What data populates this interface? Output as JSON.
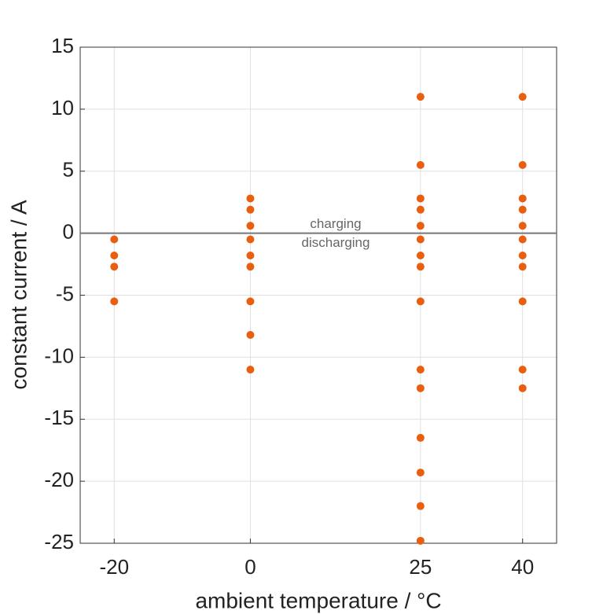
{
  "chart_data": {
    "type": "scatter",
    "x_label": "ambient temperature / °C",
    "y_label": "constant current / A",
    "x": [
      -20,
      -20,
      -20,
      -20,
      0,
      0,
      0,
      0,
      0,
      0,
      0,
      0,
      0,
      25,
      25,
      25,
      25,
      25,
      25,
      25,
      25,
      25,
      25,
      25,
      25,
      25,
      25,
      25,
      40,
      40,
      40,
      40,
      40,
      40,
      40,
      40,
      40,
      40,
      40
    ],
    "y": [
      -0.5,
      -1.8,
      -2.7,
      -5.5,
      2.8,
      1.9,
      0.6,
      -0.5,
      -1.8,
      -2.7,
      -5.5,
      -8.2,
      -11,
      11,
      5.5,
      2.8,
      1.9,
      0.6,
      -0.5,
      -1.8,
      -2.7,
      -5.5,
      -11,
      -12.5,
      -16.5,
      -19.3,
      -22,
      -24.8,
      11,
      5.5,
      2.8,
      1.9,
      0.6,
      -0.5,
      -1.8,
      -2.7,
      -5.5,
      -11,
      -12.5
    ],
    "color": "#e8600f",
    "xlim": [
      -25,
      45
    ],
    "xticks": [
      -20,
      0,
      25,
      40
    ],
    "ylim": [
      -25,
      15
    ],
    "yticks": [
      -25,
      -20,
      -15,
      -10,
      -5,
      0,
      5,
      10,
      15
    ],
    "grid": true,
    "hline": 0,
    "annotations": [
      "charging",
      "discharging"
    ]
  }
}
